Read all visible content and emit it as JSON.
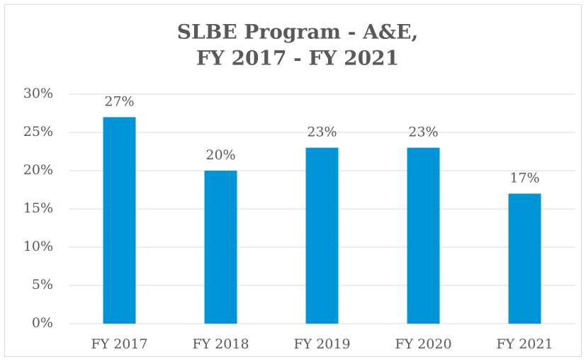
{
  "chart_data": {
    "type": "bar",
    "title": [
      "SLBE Program - A&E,",
      "FY 2017 - FY 2021"
    ],
    "categories": [
      "FY 2017",
      "FY 2018",
      "FY 2019",
      "FY 2020",
      "FY 2021"
    ],
    "values": [
      27,
      20,
      23,
      23,
      17
    ],
    "value_labels": [
      "27%",
      "20%",
      "23%",
      "23%",
      "17%"
    ],
    "color": "#0095d8",
    "ylim": [
      0,
      30
    ],
    "yticks": [
      {
        "value": 0,
        "label": "0%"
      },
      {
        "value": 5,
        "label": "5%"
      },
      {
        "value": 10,
        "label": "10%"
      },
      {
        "value": 15,
        "label": "15%"
      },
      {
        "value": 20,
        "label": "20%"
      },
      {
        "value": 25,
        "label": "25%"
      },
      {
        "value": 30,
        "label": "30%"
      }
    ],
    "grid": true
  }
}
